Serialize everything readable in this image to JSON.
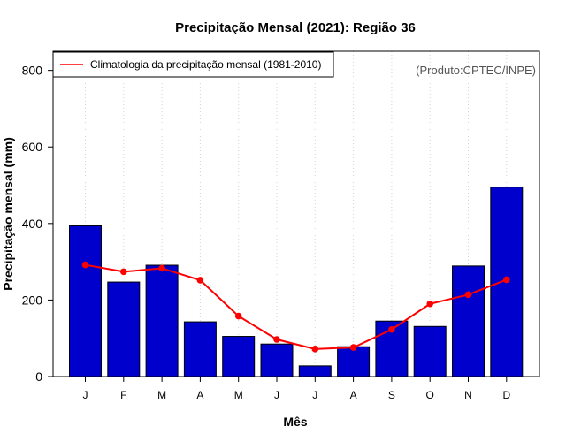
{
  "chart_data": {
    "type": "bar",
    "title": "Precipitação Mensal (2021): Região 36",
    "xlabel": "Mês",
    "ylabel": "Precipitação mensal (mm)",
    "ylim": [
      0,
      850
    ],
    "yticks": [
      0,
      200,
      400,
      600,
      800
    ],
    "grid": "vertical dotted",
    "categories": [
      "J",
      "F",
      "M",
      "A",
      "M",
      "J",
      "J",
      "A",
      "S",
      "O",
      "N",
      "D"
    ],
    "series": [
      {
        "name": "Precipitação mensal (2021)",
        "type": "bar",
        "color": "#0000CD",
        "values": [
          394,
          247,
          291,
          143,
          105,
          85,
          28,
          78,
          145,
          131,
          289,
          495
        ]
      },
      {
        "name": "Climatologia da precipitação mensal (1981-2010)",
        "type": "line",
        "color": "#FF0000",
        "values": [
          292,
          274,
          283,
          252,
          158,
          97,
          72,
          76,
          123,
          190,
          214,
          253
        ]
      }
    ],
    "legend": {
      "position": "top-left",
      "entries": [
        "Climatologia da precipitação mensal (1981-2010)"
      ]
    },
    "annotation": "(Produto:CPTEC/INPE)"
  }
}
